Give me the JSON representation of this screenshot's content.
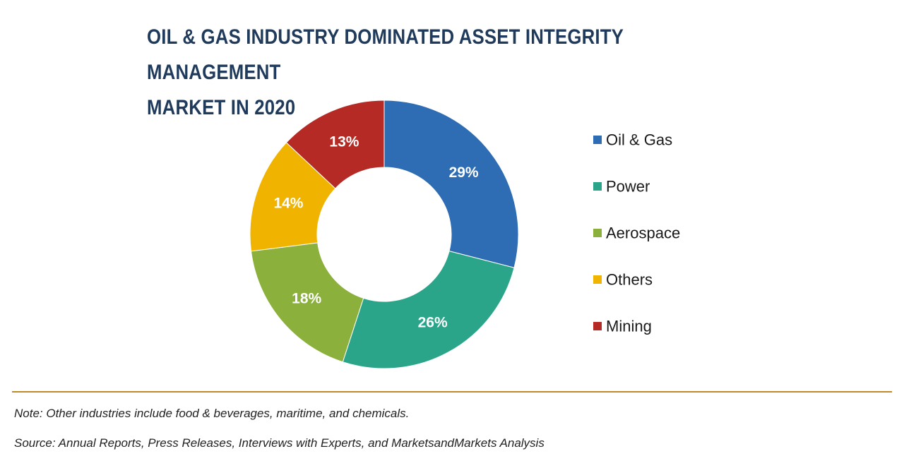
{
  "chart_data": {
    "type": "pie",
    "variant": "donut",
    "title_lines": [
      "OIL & GAS INDUSTRY DOMINATED ASSET INTEGRITY MANAGEMENT",
      "MARKET IN 2020"
    ],
    "categories": [
      "Oil & Gas",
      "Power",
      "Aerospace",
      "Others",
      "Mining"
    ],
    "values": [
      29,
      26,
      18,
      14,
      13
    ],
    "unit": "%",
    "colors": [
      "#2e6db4",
      "#2aa58a",
      "#8bb13c",
      "#f0b400",
      "#b52a24"
    ],
    "legend_position": "right"
  },
  "footer": {
    "note": "Note: Other industries include food & beverages, maritime, and chemicals.",
    "source": "Source: Annual Reports, Press Releases, Interviews with Experts, and MarketsandMarkets Analysis"
  }
}
